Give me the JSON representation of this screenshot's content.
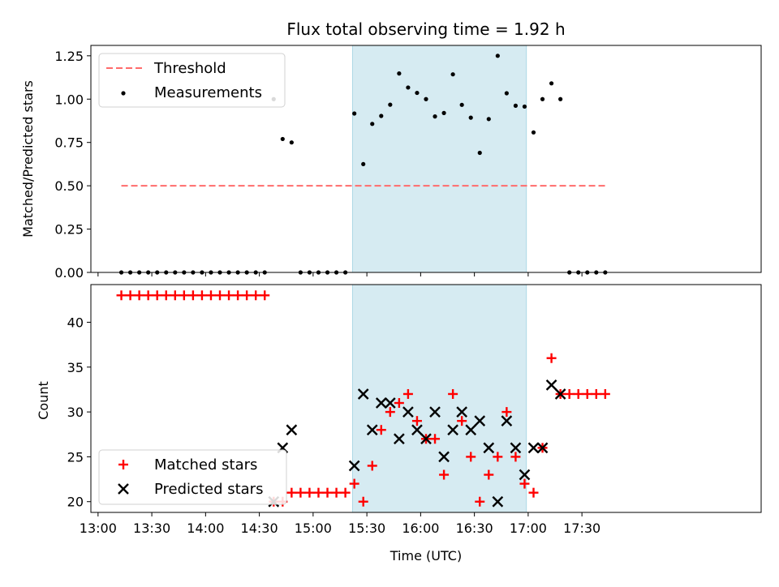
{
  "chart_data": [
    {
      "type": "scatter",
      "title": "Flux total observing time = 1.92 h",
      "xlabel": "",
      "ylabel": "Matched/Predicted stars",
      "ylim": [
        0,
        1.31
      ],
      "yticks": [
        0,
        0.25,
        0.5,
        0.75,
        1.0,
        1.25
      ],
      "ytick_labels": [
        "0.00",
        "0.25",
        "0.50",
        "0.75",
        "1.00",
        "1.25"
      ],
      "xlim_minutes_since_13_00": [
        -4,
        370
      ],
      "shaded_span": [
        "15:22",
        "16:59"
      ],
      "shade_color": "#add8e6",
      "legend": {
        "placement": "top-left",
        "entries": [
          "Threshold",
          "Measurements"
        ]
      },
      "series": [
        {
          "name": "Threshold",
          "kind": "dashed-line",
          "color": "#ff6b6b",
          "x": [
            "13:13",
            "17:43"
          ],
          "y": [
            0.5,
            0.5
          ]
        },
        {
          "name": "Measurements",
          "kind": "points",
          "color": "#000000",
          "x": [
            "13:13",
            "13:18",
            "13:23",
            "13:28",
            "13:33",
            "13:38",
            "13:43",
            "13:48",
            "13:53",
            "13:58",
            "14:03",
            "14:08",
            "14:13",
            "14:18",
            "14:23",
            "14:28",
            "14:33",
            "14:38",
            "14:43",
            "14:48",
            "14:53",
            "14:58",
            "15:03",
            "15:08",
            "15:13",
            "15:18",
            "15:23",
            "15:28",
            "15:33",
            "15:38",
            "15:43",
            "15:48",
            "15:53",
            "15:58",
            "16:03",
            "16:08",
            "16:13",
            "16:18",
            "16:23",
            "16:28",
            "16:33",
            "16:38",
            "16:43",
            "16:48",
            "16:53",
            "16:58",
            "17:03",
            "17:08",
            "17:13",
            "17:18",
            "17:23",
            "17:28",
            "17:33",
            "17:38",
            "17:43"
          ],
          "y": [
            0,
            0,
            0,
            0,
            0,
            0,
            0,
            0,
            0,
            0,
            0,
            0,
            0,
            0,
            0,
            0,
            0,
            1.0,
            0.77,
            0.75,
            0,
            0,
            0,
            0,
            0,
            0,
            0.917,
            0.625,
            0.857,
            0.903,
            0.968,
            1.148,
            1.067,
            1.036,
            1.0,
            0.9,
            0.92,
            1.143,
            0.967,
            0.893,
            0.69,
            0.885,
            1.25,
            1.034,
            0.962,
            0.957,
            0.808,
            1.0,
            1.091,
            1.0,
            0,
            0,
            0,
            0,
            0
          ]
        }
      ]
    },
    {
      "type": "scatter",
      "title": "",
      "xlabel": "Time (UTC)",
      "ylabel": "Count",
      "ylim": [
        18.8,
        44.2
      ],
      "yticks": [
        20,
        25,
        30,
        35,
        40
      ],
      "ytick_labels": [
        "20",
        "25",
        "30",
        "35",
        "40"
      ],
      "xticks": [
        "13:00",
        "13:30",
        "14:00",
        "14:30",
        "15:00",
        "15:30",
        "16:00",
        "16:30",
        "17:00",
        "17:30"
      ],
      "xlim_minutes_since_13_00": [
        -4,
        370
      ],
      "shaded_span": [
        "15:22",
        "16:59"
      ],
      "shade_color": "#add8e6",
      "legend": {
        "placement": "bottom-left",
        "entries": [
          "Matched stars",
          "Predicted stars"
        ]
      },
      "series": [
        {
          "name": "Matched stars",
          "marker": "+",
          "color": "#ff0000",
          "x": [
            "13:13",
            "13:18",
            "13:23",
            "13:28",
            "13:33",
            "13:38",
            "13:43",
            "13:48",
            "13:53",
            "13:58",
            "14:03",
            "14:08",
            "14:13",
            "14:18",
            "14:23",
            "14:28",
            "14:33",
            "14:38",
            "14:43",
            "14:48",
            "14:53",
            "14:58",
            "15:03",
            "15:08",
            "15:13",
            "15:18",
            "15:23",
            "15:28",
            "15:33",
            "15:38",
            "15:43",
            "15:48",
            "15:53",
            "15:58",
            "16:03",
            "16:08",
            "16:13",
            "16:18",
            "16:23",
            "16:28",
            "16:33",
            "16:38",
            "16:43",
            "16:48",
            "16:53",
            "16:58",
            "17:03",
            "17:08",
            "17:13",
            "17:18",
            "17:23",
            "17:28",
            "17:33",
            "17:38",
            "17:43"
          ],
          "y": [
            43,
            43,
            43,
            43,
            43,
            43,
            43,
            43,
            43,
            43,
            43,
            43,
            43,
            43,
            43,
            43,
            43,
            20,
            20,
            21,
            21,
            21,
            21,
            21,
            21,
            21,
            22,
            20,
            24,
            28,
            30,
            31,
            32,
            29,
            27,
            27,
            23,
            32,
            29,
            25,
            20,
            23,
            25,
            30,
            25,
            22,
            21,
            26,
            36,
            32,
            32,
            32,
            32,
            32,
            32
          ]
        },
        {
          "name": "Predicted stars",
          "marker": "x",
          "color": "#000000",
          "x": [
            "14:38",
            "14:43",
            "14:48",
            "15:23",
            "15:28",
            "15:33",
            "15:38",
            "15:43",
            "15:48",
            "15:53",
            "15:58",
            "16:03",
            "16:08",
            "16:13",
            "16:18",
            "16:23",
            "16:28",
            "16:33",
            "16:38",
            "16:43",
            "16:48",
            "16:53",
            "16:58",
            "17:03",
            "17:08",
            "17:13",
            "17:18"
          ],
          "y": [
            20,
            26,
            28,
            24,
            32,
            28,
            31,
            31,
            27,
            30,
            28,
            27,
            30,
            25,
            28,
            30,
            28,
            29,
            26,
            20,
            29,
            26,
            23,
            26,
            26,
            33,
            32
          ]
        }
      ]
    }
  ]
}
